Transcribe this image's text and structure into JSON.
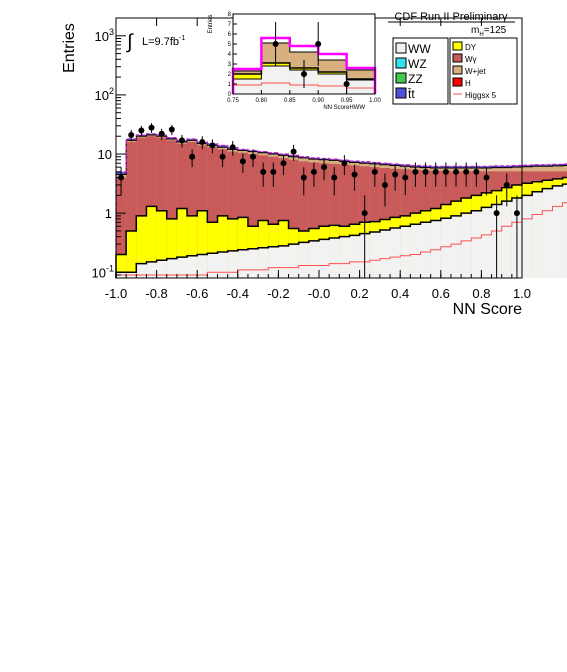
{
  "chart_data": {
    "type": "bar",
    "title": "CDF Run II Preliminary",
    "annotation_lumi_prefix": "∫",
    "annotation_lumi": "L=9.7fb",
    "annotation_lumi_sup": "-1",
    "annotation_mass": "m",
    "annotation_mass_sub": "H",
    "annotation_mass_value": "=125",
    "xlabel": "NN Score",
    "ylabel": "Entries",
    "xlim": [
      -1.0,
      1.0
    ],
    "ylim": [
      0.08,
      2000
    ],
    "yscale": "log",
    "x_ticks": [
      "-1.0",
      "-0.8",
      "-0.6",
      "-0.4",
      "-0.2",
      "-0.0",
      "0.2",
      "0.4",
      "0.6",
      "0.8",
      "1.0"
    ],
    "y_ticks": [
      {
        "base": "10",
        "exp": "-1",
        "value": 0.1
      },
      {
        "base": "1",
        "exp": "",
        "value": 1
      },
      {
        "base": "10",
        "exp": "",
        "value": 10
      },
      {
        "base": "10",
        "exp": "2",
        "value": 100
      },
      {
        "base": "10",
        "exp": "3",
        "value": 1000
      }
    ],
    "legend_position": "top-right",
    "legend": [
      {
        "name": "WW",
        "color": "#f2f2f2"
      },
      {
        "name": "WZ",
        "color": "#33e0f0"
      },
      {
        "name": "ZZ",
        "color": "#40c850"
      },
      {
        "name": "t̄t",
        "color": "#5050d8"
      },
      {
        "name": "DY",
        "color": "#ffff00"
      },
      {
        "name": "Wγ",
        "color": "#c85a5a"
      },
      {
        "name": "W+jet",
        "color": "#d8b080"
      },
      {
        "name": "H",
        "color": "#ff0000"
      },
      {
        "name": "Higgsx 5",
        "color": "#ff5050"
      }
    ],
    "bin_edges_start": -1.0,
    "bin_width": 0.05,
    "stack_cumulative": {
      "WW": [
        0.1,
        0.1,
        0.14,
        0.15,
        0.16,
        0.17,
        0.18,
        0.19,
        0.2,
        0.21,
        0.22,
        0.23,
        0.24,
        0.25,
        0.26,
        0.27,
        0.28,
        0.3,
        0.32,
        0.34,
        0.36,
        0.38,
        0.4,
        0.42,
        0.45,
        0.48,
        0.52,
        0.56,
        0.6,
        0.65,
        0.7,
        0.75,
        0.82,
        0.9,
        1.0,
        1.1,
        1.25,
        1.4,
        1.6,
        1.8,
        2.0,
        2.3,
        2.6,
        2.9,
        3.1,
        3.2,
        3.0,
        2.6,
        1.8,
        0.9
      ],
      "DY": [
        0.2,
        0.5,
        0.9,
        1.3,
        1.1,
        0.8,
        1.2,
        0.9,
        1.1,
        0.7,
        0.9,
        0.8,
        0.85,
        0.6,
        0.75,
        0.65,
        0.75,
        0.55,
        0.5,
        0.55,
        0.6,
        0.62,
        0.6,
        0.65,
        0.7,
        0.72,
        0.78,
        0.85,
        0.9,
        1.0,
        1.1,
        1.2,
        1.4,
        1.6,
        1.8,
        2.0,
        2.2,
        2.4,
        2.7,
        3.0,
        3.2,
        3.4,
        3.6,
        3.8,
        4.0,
        4.1,
        3.9,
        3.4,
        2.4,
        1.3
      ],
      "Wg": [
        4.0,
        16,
        19,
        20,
        19,
        17,
        15,
        16,
        14,
        13,
        12,
        11,
        10.5,
        10,
        9.5,
        9,
        8.5,
        8,
        7.5,
        7.2,
        7,
        6.8,
        6.6,
        6.4,
        6.2,
        6,
        5.8,
        5.6,
        5.5,
        5.4,
        5.3,
        5.2,
        5.2,
        5.1,
        5.1,
        5.1,
        5.1,
        5.1,
        5.1,
        5.1,
        5.1,
        5.1,
        5.1,
        5.1,
        5.1,
        5.0,
        4.8,
        4.4,
        3.0,
        1.5
      ],
      "Wjet": [
        4.5,
        17,
        20,
        21,
        20,
        18,
        16,
        17,
        15,
        14,
        13,
        12,
        11.5,
        11,
        10.5,
        10,
        9.5,
        9,
        8.6,
        8.2,
        8,
        7.8,
        7.5,
        7.2,
        7.0,
        6.8,
        6.6,
        6.4,
        6.2,
        6.0,
        5.9,
        5.8,
        5.8,
        5.8,
        5.8,
        5.8,
        5.8,
        5.9,
        5.9,
        6.0,
        6.1,
        6.2,
        6.2,
        6.3,
        6.4,
        6.3,
        6.0,
        5.3,
        3.4,
        1.6
      ],
      "total": [
        5.0,
        18,
        21,
        22,
        21,
        19,
        17,
        18,
        16,
        15,
        14,
        13,
        12,
        11.5,
        11,
        10.5,
        10,
        9.5,
        9,
        8.6,
        8.4,
        8.2,
        7.9,
        7.6,
        7.4,
        7.2,
        7.0,
        6.8,
        6.6,
        6.4,
        6.3,
        6.2,
        6.2,
        6.2,
        6.2,
        6.2,
        6.2,
        6.3,
        6.3,
        6.4,
        6.5,
        6.6,
        6.6,
        6.7,
        6.8,
        6.7,
        6.4,
        5.7,
        3.8,
        2.0
      ]
    },
    "higgs_x5": [
      0.09,
      0.09,
      0.09,
      0.09,
      0.09,
      0.09,
      0.09,
      0.09,
      0.09,
      0.1,
      0.1,
      0.1,
      0.11,
      0.11,
      0.11,
      0.12,
      0.12,
      0.12,
      0.13,
      0.13,
      0.13,
      0.14,
      0.14,
      0.15,
      0.15,
      0.16,
      0.17,
      0.18,
      0.19,
      0.2,
      0.22,
      0.24,
      0.27,
      0.3,
      0.34,
      0.38,
      0.43,
      0.5,
      0.6,
      0.7,
      0.8,
      0.95,
      1.1,
      1.3,
      1.5,
      1.6,
      1.4,
      1.0,
      0.6,
      0.3
    ],
    "data_points": [
      {
        "x": -0.975,
        "y": 4.0,
        "err": 2.0
      },
      {
        "x": -0.925,
        "y": 21,
        "err": 4.6
      },
      {
        "x": -0.875,
        "y": 25,
        "err": 5.0
      },
      {
        "x": -0.825,
        "y": 28,
        "err": 5.3
      },
      {
        "x": -0.775,
        "y": 22,
        "err": 4.7
      },
      {
        "x": -0.725,
        "y": 26,
        "err": 5.1
      },
      {
        "x": -0.675,
        "y": 17,
        "err": 4.1
      },
      {
        "x": -0.625,
        "y": 9,
        "err": 3.0
      },
      {
        "x": -0.575,
        "y": 16,
        "err": 4.0
      },
      {
        "x": -0.525,
        "y": 14,
        "err": 3.7
      },
      {
        "x": -0.475,
        "y": 9,
        "err": 3.0
      },
      {
        "x": -0.425,
        "y": 13,
        "err": 3.6
      },
      {
        "x": -0.375,
        "y": 7.5,
        "err": 2.7
      },
      {
        "x": -0.325,
        "y": 9,
        "err": 3.0
      },
      {
        "x": -0.275,
        "y": 5,
        "err": 2.2
      },
      {
        "x": -0.225,
        "y": 5,
        "err": 2.2
      },
      {
        "x": -0.175,
        "y": 7,
        "err": 2.6
      },
      {
        "x": -0.125,
        "y": 11,
        "err": 3.3
      },
      {
        "x": -0.075,
        "y": 4,
        "err": 2.0
      },
      {
        "x": -0.025,
        "y": 5,
        "err": 2.2
      },
      {
        "x": 0.025,
        "y": 6,
        "err": 2.4
      },
      {
        "x": 0.075,
        "y": 4,
        "err": 2.0
      },
      {
        "x": 0.125,
        "y": 7,
        "err": 2.6
      },
      {
        "x": 0.175,
        "y": 4.5,
        "err": 2.1
      },
      {
        "x": 0.225,
        "y": 1.0,
        "err": 1.0
      },
      {
        "x": 0.275,
        "y": 5,
        "err": 2.2
      },
      {
        "x": 0.325,
        "y": 3,
        "err": 1.7
      },
      {
        "x": 0.375,
        "y": 4.5,
        "err": 2.1
      },
      {
        "x": 0.425,
        "y": 4,
        "err": 2.0
      },
      {
        "x": 0.475,
        "y": 5,
        "err": 2.2
      },
      {
        "x": 0.525,
        "y": 5,
        "err": 2.2
      },
      {
        "x": 0.575,
        "y": 5,
        "err": 2.2
      },
      {
        "x": 0.625,
        "y": 5,
        "err": 2.2
      },
      {
        "x": 0.675,
        "y": 5,
        "err": 2.2
      },
      {
        "x": 0.725,
        "y": 5,
        "err": 2.2
      },
      {
        "x": 0.775,
        "y": 5,
        "err": 2.2
      },
      {
        "x": 0.825,
        "y": 4,
        "err": 2.0
      },
      {
        "x": 0.875,
        "y": 1.0,
        "err": 1.0
      },
      {
        "x": 0.925,
        "y": 3,
        "err": 1.7
      },
      {
        "x": 0.975,
        "y": 1.0,
        "err": 1.0
      }
    ],
    "inset": {
      "xlabel": "NN ScoreHWW",
      "ylabel": "Entries",
      "xlim": [
        0.75,
        1.0
      ],
      "ylim": [
        0,
        8
      ],
      "x_ticks": [
        "0.75",
        "0.80",
        "0.85",
        "0.90",
        "0.95",
        "1.00"
      ],
      "y_ticks": [
        "0",
        "1",
        "2",
        "3",
        "4",
        "5",
        "6",
        "7",
        "8"
      ],
      "bin_edges": [
        0.75,
        0.8,
        0.85,
        0.9,
        0.95,
        1.0
      ],
      "WW": [
        1.5,
        2.8,
        2.4,
        2.0,
        1.4
      ],
      "DY": [
        2.0,
        3.1,
        2.6,
        2.2,
        1.5
      ],
      "total_bkg": [
        2.3,
        5.1,
        4.2,
        3.4,
        2.4
      ],
      "higgs": [
        2.5,
        5.6,
        4.8,
        4.0,
        2.6
      ],
      "higgs_x5": [
        0.9,
        1.1,
        0.9,
        0.8,
        0.6
      ],
      "data": [
        {
          "x": 0.825,
          "y": 5.0,
          "err": 2.2
        },
        {
          "x": 0.875,
          "y": 2.0,
          "err": 1.4
        },
        {
          "x": 0.9,
          "y": 5.0,
          "err": 2.2
        },
        {
          "x": 0.95,
          "y": 1.0,
          "err": 1.0
        }
      ]
    }
  }
}
